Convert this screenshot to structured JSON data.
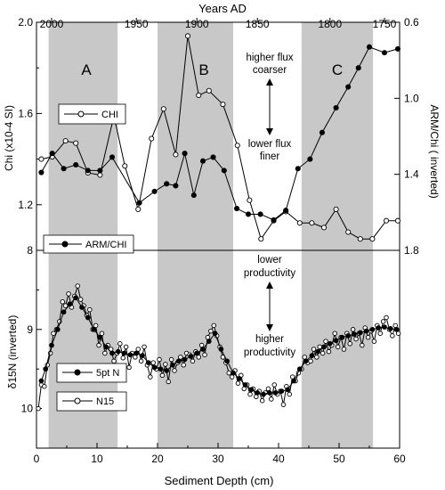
{
  "figure": {
    "top_axis_label": "Years AD",
    "top_ticks": [
      {
        "label": "2000",
        "depth": 2.5
      },
      {
        "label": "1950",
        "depth": 16.5
      },
      {
        "label": "1900",
        "depth": 26.5
      },
      {
        "label": "1850",
        "depth": 36.5
      },
      {
        "label": "1800",
        "depth": 48.5
      },
      {
        "label": "1750",
        "depth": 57.5
      }
    ],
    "shaded_depth_bands": [
      [
        2,
        13.4
      ],
      [
        20,
        32.5
      ],
      [
        43.8,
        55.6
      ]
    ],
    "colors": {
      "band": "#c8c8c8",
      "axis": "#000000",
      "series": "#000000"
    }
  },
  "chart_data": [
    {
      "type": "line",
      "panel": "top",
      "xlabel": "",
      "ylabel": "Chi  (x10-4 SI)",
      "ylabel_right": "ARM/Chi ( inverted)",
      "xlim": [
        0,
        60
      ],
      "ylim": [
        1.0,
        2.0
      ],
      "ylim_right": [
        1.8,
        0.6
      ],
      "yticks": [
        "1.2",
        "1.6",
        "2.0"
      ],
      "yticks_right": [
        "0.6",
        "1.0",
        "1.4",
        "1.8"
      ],
      "grid": false,
      "band_labels": [
        {
          "text": "A",
          "x": 7.5
        },
        {
          "text": "B",
          "x": 26
        },
        {
          "text": "C",
          "x": 49.5
        }
      ],
      "annotations": [
        "higher flux",
        "coarser",
        "lower flux",
        "finer"
      ],
      "legend": [
        {
          "name": "CHI",
          "marker": "open-circle",
          "placement": "upper-left"
        },
        {
          "name": "ARM/CHI",
          "marker": "filled-circle",
          "placement": "lower-left"
        }
      ],
      "series": [
        {
          "name": "CHI",
          "axis": "left",
          "marker": "open-circle",
          "x": [
            0.8,
            2.6,
            4.8,
            6.5,
            8.5,
            10.5,
            12.8,
            14.6,
            16.8,
            19.0,
            21.0,
            23.0,
            25.0,
            26.8,
            28.5,
            30.8,
            33.2,
            35.2,
            37.1,
            39.2,
            41.2,
            43.5,
            45.5,
            47.5,
            49.5,
            51.5,
            53.5,
            55.5,
            57.8,
            59.7
          ],
          "y": [
            1.4,
            1.41,
            1.48,
            1.47,
            1.34,
            1.33,
            1.59,
            1.37,
            1.18,
            1.49,
            1.62,
            1.42,
            1.94,
            1.68,
            1.7,
            1.64,
            1.46,
            1.22,
            1.05,
            1.13,
            1.17,
            1.12,
            1.12,
            1.1,
            1.18,
            1.08,
            1.05,
            1.05,
            1.13,
            1.13
          ]
        },
        {
          "name": "ARM/CHI",
          "axis": "right",
          "marker": "filled-circle",
          "x": [
            0.8,
            2.6,
            4.5,
            6.5,
            8.5,
            10.5,
            12.5,
            17.0,
            19.5,
            21.5,
            23.0,
            24.5,
            26.0,
            27.5,
            29.2,
            31.0,
            33.1,
            35.0,
            37.0,
            39.2,
            41.2,
            43.2,
            45.2,
            47.2,
            49.5,
            51.5,
            53.2,
            55.0,
            57.5,
            59.7
          ],
          "y": [
            1.39,
            1.29,
            1.37,
            1.35,
            1.38,
            1.38,
            1.31,
            1.55,
            1.49,
            1.45,
            1.46,
            1.29,
            1.51,
            1.33,
            1.31,
            1.38,
            1.58,
            1.61,
            1.61,
            1.64,
            1.59,
            1.37,
            1.32,
            1.18,
            1.05,
            0.94,
            0.84,
            0.73,
            0.76,
            0.74
          ]
        }
      ]
    },
    {
      "type": "line",
      "panel": "bottom",
      "xlabel": "Sediment Depth (cm)",
      "ylabel": "δ15N (inverted)",
      "xlim": [
        0,
        60
      ],
      "ylim": [
        10.5,
        8.0
      ],
      "yticks": [
        "8",
        "9",
        "10"
      ],
      "xticks": [
        "0",
        "10",
        "20",
        "30",
        "40",
        "50",
        "60"
      ],
      "grid": false,
      "annotations": [
        "lower",
        "productivity",
        "higher",
        "productivity"
      ],
      "legend": [
        {
          "name": "5pt N",
          "marker": "filled-circle",
          "placement": "lower-left"
        },
        {
          "name": "N15",
          "marker": "open-circle",
          "placement": "lower-left"
        }
      ],
      "series": [
        {
          "name": "N15",
          "marker": "open-circle",
          "x": [
            0.3,
            0.8,
            1.3,
            1.8,
            2.3,
            2.8,
            3.3,
            3.8,
            4.3,
            4.8,
            5.3,
            5.8,
            6.3,
            6.8,
            7.3,
            7.8,
            8.3,
            8.8,
            9.3,
            9.8,
            10.3,
            10.8,
            11.3,
            11.8,
            12.3,
            12.8,
            13.3,
            13.8,
            14.3,
            14.8,
            15.3,
            15.8,
            16.3,
            16.8,
            17.3,
            17.8,
            18.3,
            18.8,
            19.3,
            19.8,
            20.3,
            20.8,
            21.3,
            21.8,
            22.3,
            22.8,
            23.3,
            23.8,
            24.3,
            24.8,
            25.3,
            25.8,
            26.3,
            26.8,
            27.3,
            27.8,
            28.3,
            28.8,
            29.3,
            29.8,
            30.3,
            30.8,
            31.3,
            31.8,
            32.3,
            32.8,
            33.3,
            33.8,
            34.3,
            34.8,
            35.3,
            35.8,
            36.3,
            36.8,
            37.3,
            37.8,
            38.3,
            38.8,
            39.3,
            39.8,
            40.3,
            40.8,
            41.3,
            41.8,
            42.3,
            42.8,
            43.3,
            43.8,
            44.3,
            44.8,
            45.3,
            45.8,
            46.3,
            46.8,
            47.3,
            47.8,
            48.3,
            48.8,
            49.3,
            49.8,
            50.3,
            50.8,
            51.3,
            51.8,
            52.3,
            52.8,
            53.3,
            53.8,
            54.3,
            54.8,
            55.3,
            55.8,
            56.3,
            56.8,
            57.3,
            57.8,
            58.3,
            58.8,
            59.3,
            59.8
          ],
          "y": [
            10.0,
            9.7,
            9.72,
            9.45,
            9.3,
            9.05,
            9.0,
            8.9,
            8.65,
            8.7,
            8.55,
            8.72,
            8.58,
            8.45,
            8.62,
            8.7,
            8.82,
            8.75,
            9.0,
            8.95,
            9.2,
            9.05,
            9.3,
            9.2,
            9.25,
            9.4,
            9.3,
            9.18,
            9.36,
            9.22,
            9.48,
            9.3,
            9.35,
            9.25,
            9.4,
            9.22,
            9.45,
            9.6,
            9.42,
            9.5,
            9.38,
            9.58,
            9.44,
            9.66,
            9.38,
            9.52,
            9.42,
            9.35,
            9.45,
            9.3,
            9.32,
            9.4,
            9.28,
            9.35,
            9.2,
            9.32,
            9.1,
            9.02,
            8.95,
            9.08,
            9.22,
            9.35,
            9.42,
            9.55,
            9.6,
            9.52,
            9.68,
            9.58,
            9.75,
            9.7,
            9.82,
            9.75,
            9.85,
            9.78,
            9.9,
            9.8,
            9.75,
            9.88,
            9.7,
            9.82,
            9.78,
            9.95,
            9.72,
            9.82,
            9.6,
            9.65,
            9.55,
            9.5,
            9.35,
            9.42,
            9.4,
            9.25,
            9.35,
            9.22,
            9.3,
            9.15,
            9.28,
            9.2,
            9.05,
            9.22,
            9.1,
            9.25,
            9.05,
            9.18,
            9.0,
            9.12,
            9.05,
            9.2,
            8.98,
            9.1,
            9.02,
            9.15,
            8.95,
            9.05,
            8.9,
            8.85,
            9.0,
            9.08,
            8.95,
            9.05
          ]
        },
        {
          "name": "5pt N",
          "marker": "filled-circle",
          "x": [
            0.8,
            1.5,
            2.5,
            3.5,
            4.5,
            5.5,
            6.5,
            7.5,
            8.5,
            9.5,
            10.5,
            11.5,
            12.5,
            13.5,
            14.5,
            15.5,
            16.5,
            17.5,
            18.5,
            19.5,
            20.5,
            21.5,
            22.5,
            23.5,
            24.5,
            25.5,
            26.5,
            27.5,
            28.5,
            29.5,
            30.5,
            31.5,
            32.5,
            33.5,
            34.5,
            35.5,
            36.5,
            37.5,
            38.5,
            39.5,
            40.5,
            41.5,
            42.5,
            43.5,
            44.5,
            45.5,
            46.5,
            47.5,
            48.5,
            49.5,
            50.5,
            51.5,
            52.5,
            53.5,
            54.5,
            55.5,
            56.5,
            57.5,
            58.5,
            59.5
          ],
          "y": [
            9.65,
            9.5,
            9.2,
            9.0,
            8.78,
            8.68,
            8.6,
            8.72,
            8.85,
            9.0,
            9.1,
            9.22,
            9.3,
            9.28,
            9.3,
            9.32,
            9.3,
            9.33,
            9.42,
            9.48,
            9.5,
            9.52,
            9.45,
            9.4,
            9.38,
            9.34,
            9.3,
            9.25,
            9.15,
            9.05,
            9.25,
            9.4,
            9.55,
            9.62,
            9.7,
            9.76,
            9.8,
            9.82,
            9.8,
            9.8,
            9.78,
            9.76,
            9.65,
            9.5,
            9.4,
            9.33,
            9.28,
            9.22,
            9.18,
            9.14,
            9.1,
            9.08,
            9.06,
            9.04,
            9.02,
            9.0,
            8.98,
            8.97,
            8.99,
            9.0
          ]
        }
      ]
    }
  ]
}
